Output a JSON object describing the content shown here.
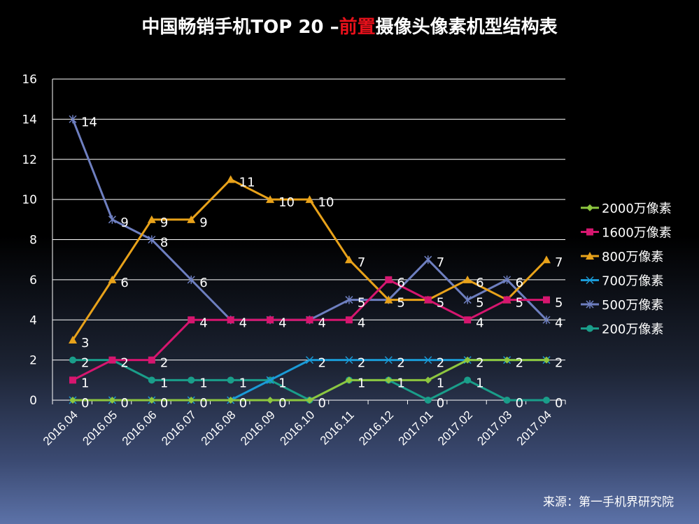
{
  "title": {
    "part1": "中国畅销手机TOP 20 –",
    "highlight": "前置",
    "part2": "摄像头像素机型结构表"
  },
  "source": "来源：第一手机界研究院",
  "chart_data": {
    "type": "line",
    "categories": [
      "2016.04",
      "2016.05",
      "2016.06",
      "2016.07",
      "2016.08",
      "2016.09",
      "2016.10",
      "2016.11",
      "2016.12",
      "2017.01",
      "2017.02",
      "2017.03",
      "2017.04"
    ],
    "ylim": [
      0,
      16
    ],
    "yticks": [
      0,
      2,
      4,
      6,
      8,
      10,
      12,
      14,
      16
    ],
    "grid": true,
    "legend": "right",
    "series": [
      {
        "name": "2000万像素",
        "color": "#8dc63f",
        "marker": "diamond",
        "values": [
          0,
          0,
          0,
          0,
          0,
          0,
          0,
          1,
          1,
          1,
          2,
          2,
          2
        ]
      },
      {
        "name": "1600万像素",
        "color": "#d6166f",
        "marker": "square",
        "values": [
          1,
          2,
          2,
          4,
          4,
          4,
          4,
          4,
          6,
          5,
          4,
          5,
          5
        ]
      },
      {
        "name": "800万像素",
        "color": "#e8a21a",
        "marker": "triangle",
        "values": [
          3,
          6,
          9,
          9,
          11,
          10,
          10,
          7,
          5,
          5,
          6,
          5,
          7
        ]
      },
      {
        "name": "700万像素",
        "color": "#1a9bd7",
        "marker": "x",
        "values": [
          0,
          0,
          0,
          0,
          0,
          1,
          2,
          2,
          2,
          2,
          2,
          2,
          2
        ]
      },
      {
        "name": "500万像素",
        "color": "#6e7fc0",
        "marker": "star",
        "values": [
          14,
          9,
          8,
          6,
          4,
          4,
          4,
          5,
          5,
          7,
          5,
          6,
          4
        ]
      },
      {
        "name": "200万像素",
        "color": "#1a9e8a",
        "marker": "circle",
        "values": [
          2,
          2,
          1,
          1,
          1,
          1,
          0,
          1,
          1,
          0,
          1,
          0,
          0
        ]
      }
    ]
  }
}
